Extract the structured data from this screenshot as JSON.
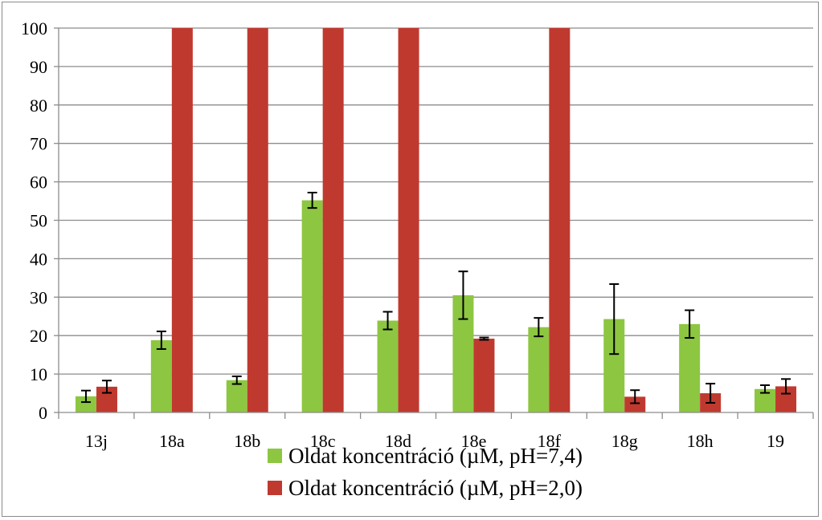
{
  "chart_data": {
    "type": "bar",
    "title": "",
    "xlabel": "",
    "ylabel": "",
    "ylim": [
      0,
      100
    ],
    "yticks": [
      0,
      10,
      20,
      30,
      40,
      50,
      60,
      70,
      80,
      90,
      100
    ],
    "grid": "horizontal",
    "legend": "bottom",
    "categories": [
      "13j",
      "18a",
      "18b",
      "18c",
      "18d",
      "18e",
      "18f",
      "18g",
      "18h",
      "19"
    ],
    "series": [
      {
        "name": "Oldat koncentráció (µM, pH=7,4)",
        "color": "#8dc641",
        "values": [
          4.2,
          18.8,
          8.4,
          55.2,
          23.9,
          30.5,
          22.2,
          24.3,
          23.0,
          6.1
        ],
        "errors": [
          1.5,
          2.3,
          1.0,
          2.0,
          2.3,
          6.2,
          2.4,
          9.1,
          3.6,
          1.0
        ]
      },
      {
        "name": "Oldat koncentráció (µM, pH=2,0)",
        "color": "#c0392f",
        "values": [
          6.7,
          100,
          100,
          100,
          100,
          19.2,
          100,
          4.1,
          5.0,
          6.8
        ],
        "errors": [
          1.6,
          0,
          0,
          0,
          0,
          0.3,
          0,
          1.7,
          2.5,
          1.9
        ]
      }
    ]
  }
}
